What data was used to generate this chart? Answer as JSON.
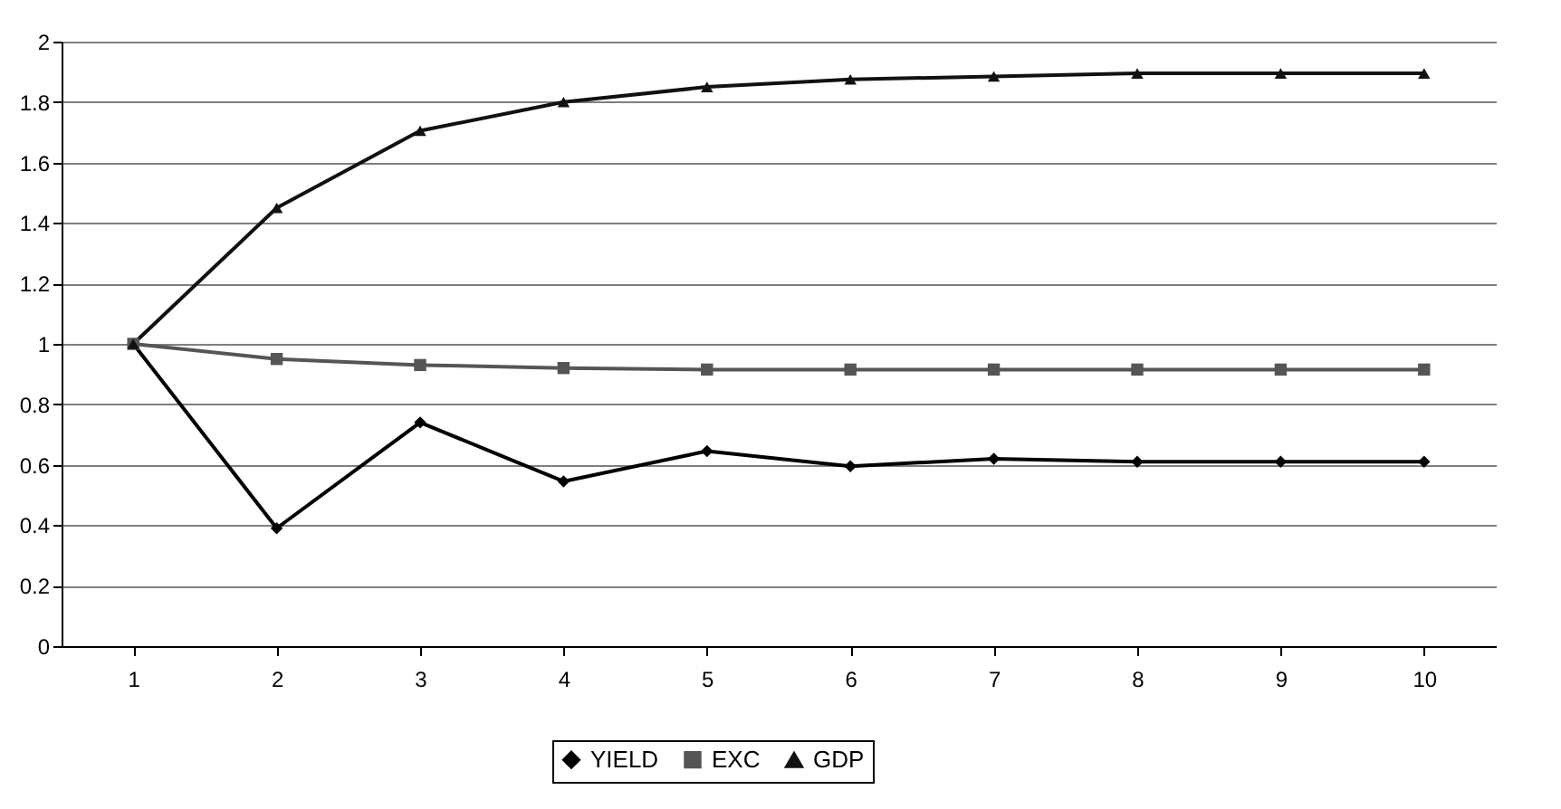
{
  "chart_data": {
    "type": "line",
    "categories": [
      "1",
      "2",
      "3",
      "4",
      "5",
      "6",
      "7",
      "8",
      "9",
      "10"
    ],
    "series": [
      {
        "name": "YIELD",
        "color": "#000000",
        "marker": "diamond",
        "values": [
          1,
          0.39,
          0.74,
          0.545,
          0.645,
          0.595,
          0.62,
          0.61,
          0.61,
          0.61
        ]
      },
      {
        "name": "EXC",
        "color": "#555555",
        "marker": "square",
        "values": [
          1,
          0.95,
          0.93,
          0.92,
          0.915,
          0.915,
          0.915,
          0.915,
          0.915,
          0.915
        ]
      },
      {
        "name": "GDP",
        "color": "#111111",
        "marker": "triangle",
        "values": [
          1,
          1.45,
          1.705,
          1.8,
          1.85,
          1.875,
          1.885,
          1.895,
          1.895,
          1.895
        ]
      }
    ],
    "ylim": [
      0,
      2
    ],
    "yticks": [
      0,
      0.2,
      0.4,
      0.6,
      0.8,
      1,
      1.2,
      1.4,
      1.6,
      1.8,
      2
    ],
    "grid": "y",
    "legend": "bottom",
    "line_style": "solid"
  }
}
